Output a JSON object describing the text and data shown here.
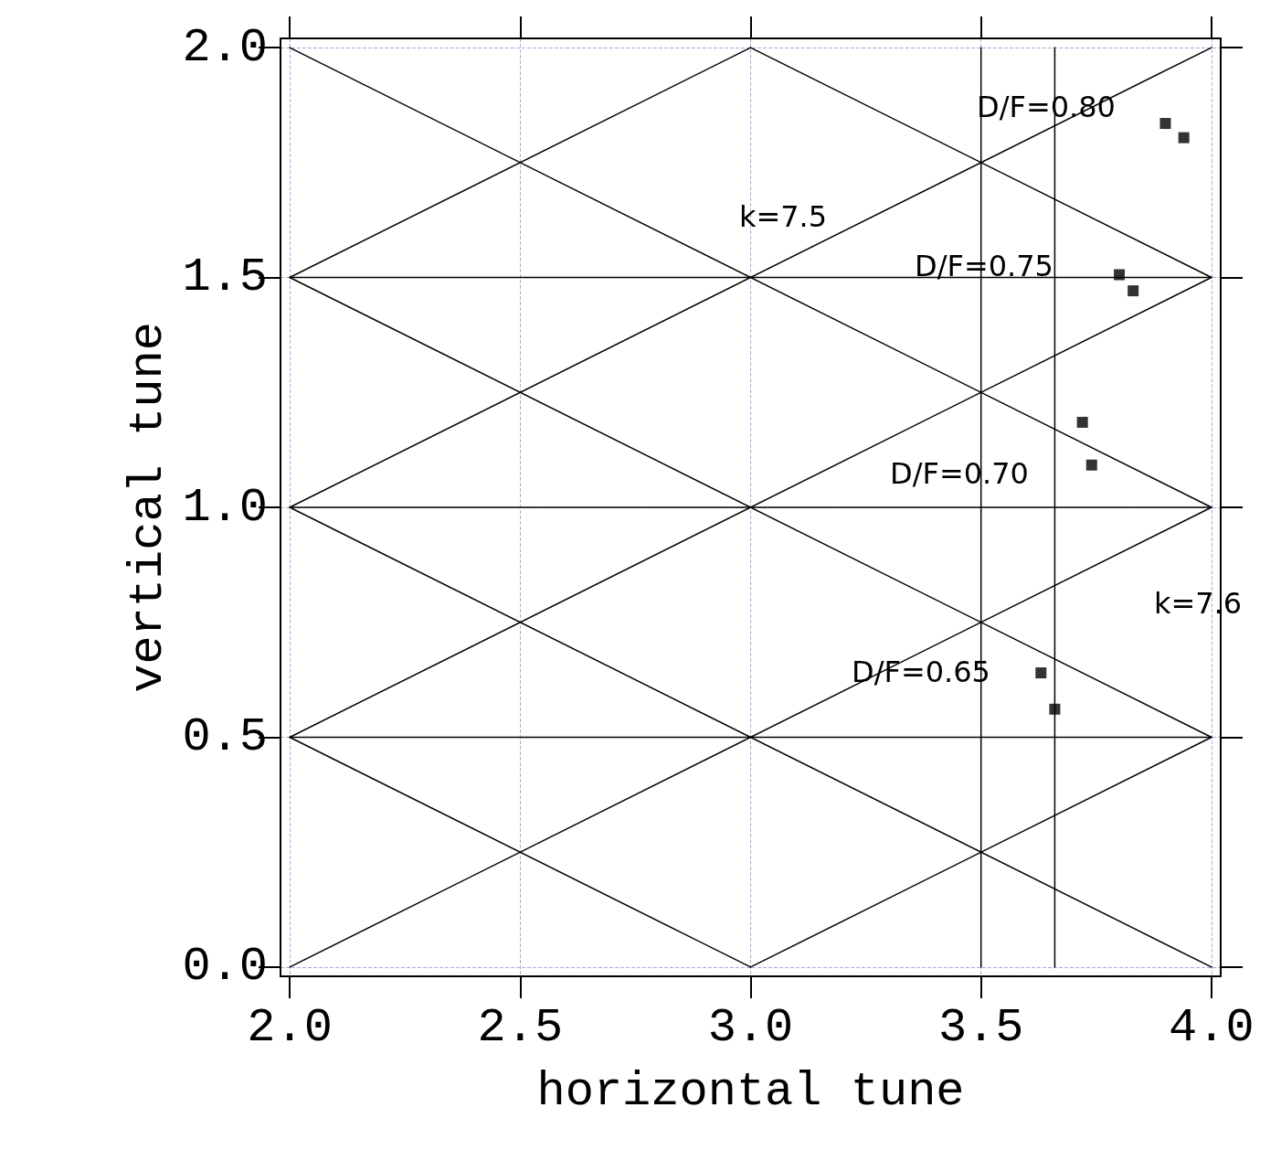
{
  "chart_data": {
    "type": "scatter",
    "xlabel": "horizontal tune",
    "ylabel": "vertical tune",
    "xlim": [
      1.98,
      4.02
    ],
    "ylim": [
      -0.02,
      2.02
    ],
    "xticks": [
      {
        "value": 2,
        "label": "2.0"
      },
      2.5,
      {
        "value": 3,
        "label": "3.0"
      },
      3.5,
      {
        "value": 4,
        "label": "4.0"
      }
    ],
    "yticks": [
      {
        "value": 0,
        "label": "0.0"
      },
      0.5,
      {
        "value": 1,
        "label": "1.0"
      },
      1.5,
      {
        "value": 2,
        "label": "2.0"
      }
    ],
    "grid": true,
    "line_style": "solid",
    "series": [
      {
        "type": "line",
        "color": "#000000",
        "marker": "none",
        "x": [
          2,
          3
        ],
        "values": [
          1.5,
          2
        ]
      },
      {
        "type": "line",
        "color": "#000000",
        "marker": "none",
        "x": [
          2,
          4
        ],
        "values": [
          1,
          2
        ]
      },
      {
        "type": "line",
        "color": "#000000",
        "marker": "none",
        "x": [
          2,
          4
        ],
        "values": [
          0.5,
          1.5
        ]
      },
      {
        "type": "line",
        "color": "#000000",
        "marker": "none",
        "x": [
          2,
          4
        ],
        "values": [
          0,
          1
        ]
      },
      {
        "type": "line",
        "color": "#000000",
        "marker": "none",
        "x": [
          3,
          4
        ],
        "values": [
          0,
          0.5
        ]
      },
      {
        "type": "line",
        "color": "#000000",
        "marker": "none",
        "x": [
          2,
          4
        ],
        "values": [
          2,
          1
        ]
      },
      {
        "type": "line",
        "color": "#000000",
        "marker": "none",
        "x": [
          3,
          4
        ],
        "values": [
          2,
          1.5
        ]
      },
      {
        "type": "line",
        "color": "#000000",
        "marker": "none",
        "x": [
          2,
          4
        ],
        "values": [
          1.5,
          0.5
        ]
      },
      {
        "type": "line",
        "color": "#000000",
        "marker": "none",
        "x": [
          2,
          4
        ],
        "values": [
          1,
          0
        ]
      },
      {
        "type": "line",
        "color": "#000000",
        "marker": "none",
        "x": [
          2,
          3
        ],
        "values": [
          0.5,
          0
        ]
      },
      {
        "type": "line",
        "color": "#000000",
        "marker": "none",
        "x": [
          2,
          4
        ],
        "values": [
          0.5,
          0.5
        ]
      },
      {
        "type": "line",
        "color": "#000000",
        "marker": "none",
        "x": [
          2,
          4
        ],
        "values": [
          1,
          1
        ]
      },
      {
        "type": "line",
        "color": "#000000",
        "marker": "none",
        "x": [
          2,
          4
        ],
        "values": [
          1.5,
          1.5
        ]
      },
      {
        "type": "line",
        "color": "#000000",
        "marker": "none",
        "x": [
          3.5,
          3.5
        ],
        "values": [
          0,
          2
        ]
      },
      {
        "type": "line",
        "color": "#000000",
        "marker": "none",
        "x": [
          3.66,
          3.66
        ],
        "values": [
          0,
          2
        ]
      },
      {
        "color": "#000000",
        "marker": "square",
        "x": [
          3.9,
          3.94,
          3.8,
          3.83,
          3.72,
          3.74,
          3.63,
          3.66
        ],
        "values": [
          1.835,
          1.804,
          1.506,
          1.471,
          1.185,
          1.092,
          0.64,
          0.561
        ]
      }
    ],
    "annotations": [
      "D/F=0.80",
      "k=7.5",
      "D/F=0.75",
      "D/F=0.70",
      "k=7.6",
      "D/F=0.65"
    ]
  }
}
